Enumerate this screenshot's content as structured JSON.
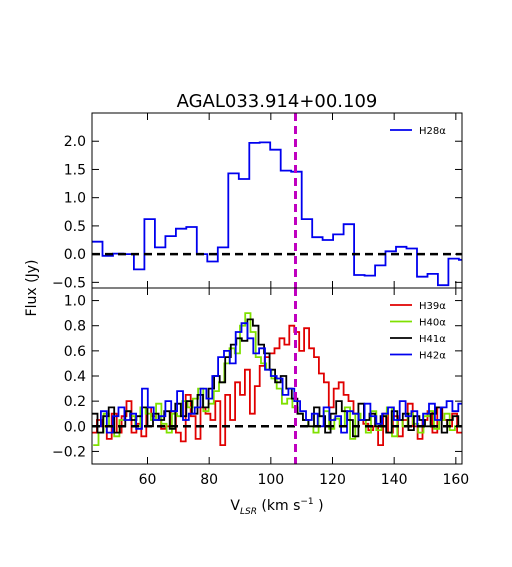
{
  "figure": {
    "title": "AGAL033.914+00.109",
    "xlabel": "V",
    "xlabel_sub": "LSR",
    "xlabel_unit_open": " (km s",
    "xlabel_unit_exp": "−1",
    "xlabel_unit_close": " )",
    "ylabel": "Flux (Jy)"
  },
  "chart_data": [
    {
      "type": "line",
      "step": true,
      "panel": "top",
      "xlim": [
        42,
        162
      ],
      "ylim": [
        -0.6,
        2.5
      ],
      "xticks": [
        60,
        80,
        100,
        120,
        140,
        160
      ],
      "yticks": [
        -0.5,
        0.0,
        0.5,
        1.0,
        1.5,
        2.0
      ],
      "ytick_labels": [
        "−0.5",
        "0.0",
        "0.5",
        "1.0",
        "1.5",
        "2.0"
      ],
      "legend": "top-right",
      "reference_lines": [
        {
          "orientation": "horizontal",
          "value": 0.0,
          "style": "dashed",
          "color": "#000000"
        },
        {
          "orientation": "vertical",
          "value": 108.0,
          "style": "dashed",
          "color": "#bf00bf"
        }
      ],
      "series": [
        {
          "name": "H28α",
          "color": "#0000ee",
          "x": [
            42,
            45.4,
            48.8,
            52.2,
            55.6,
            59,
            62.4,
            65.8,
            69.2,
            72.6,
            76,
            79.4,
            82.8,
            86.2,
            89.6,
            93,
            96.4,
            99.8,
            103.2,
            106.6,
            110,
            113.4,
            116.8,
            120.2,
            123.6,
            127,
            130.4,
            133.8,
            137.2,
            140.6,
            144,
            147.4,
            150.8,
            154.2,
            157.6,
            161
          ],
          "y": [
            0.22,
            -0.03,
            0.01,
            0.0,
            -0.27,
            0.62,
            0.12,
            0.32,
            0.45,
            0.48,
            0.0,
            -0.13,
            0.12,
            1.43,
            1.33,
            1.97,
            1.98,
            1.85,
            1.48,
            1.46,
            0.62,
            0.3,
            0.25,
            0.35,
            0.53,
            -0.37,
            -0.38,
            -0.2,
            0.05,
            0.13,
            0.1,
            -0.4,
            -0.35,
            -0.55,
            -0.08,
            -0.1
          ]
        }
      ]
    },
    {
      "type": "line",
      "step": true,
      "panel": "bottom",
      "xlim": [
        42,
        162
      ],
      "ylim": [
        -0.3,
        1.1
      ],
      "xticks": [
        60,
        80,
        100,
        120,
        140,
        160
      ],
      "yticks": [
        -0.2,
        0.0,
        0.2,
        0.4,
        0.6,
        0.8,
        1.0
      ],
      "ytick_labels": [
        "−0.2",
        "0.0",
        "0.2",
        "0.4",
        "0.6",
        "0.8",
        "1.0"
      ],
      "legend": "top-right",
      "reference_lines": [
        {
          "orientation": "horizontal",
          "value": 0.0,
          "style": "dashed",
          "color": "#000000"
        },
        {
          "orientation": "vertical",
          "value": 108.0,
          "style": "dashed",
          "color": "#bf00bf"
        }
      ],
      "series": [
        {
          "name": "H39α",
          "color": "#e00000",
          "x_start": 42,
          "x_step": 1.6,
          "y": [
            -0.05,
            0.05,
            0.0,
            -0.1,
            0.1,
            -0.05,
            0.08,
            0.2,
            -0.05,
            0.02,
            -0.08,
            0.15,
            0.08,
            0.05,
            -0.02,
            0.0,
            0.12,
            -0.05,
            -0.12,
            0.25,
            0.08,
            -0.1,
            0.15,
            0.1,
            0.05,
            0.2,
            -0.15,
            0.25,
            0.05,
            0.35,
            0.25,
            0.45,
            0.1,
            0.32,
            0.48,
            0.55,
            0.58,
            0.62,
            0.7,
            0.65,
            0.8,
            0.75,
            0.6,
            0.78,
            0.62,
            0.55,
            0.42,
            0.35,
            0.15,
            0.3,
            0.35,
            0.25,
            0.2,
            0.1,
            0.05,
            0.02,
            -0.03,
            0.0,
            -0.15,
            0.1,
            -0.05,
            0.08,
            -0.08,
            0.05,
            0.18,
            0.0,
            -0.1,
            0.05,
            0.12,
            -0.05,
            0.15,
            0.05,
            0.0,
            0.1,
            -0.05
          ]
        },
        {
          "name": "H40α",
          "color": "#7fe000",
          "x_start": 42.4,
          "x_step": 1.7,
          "y": [
            -0.15,
            -0.05,
            0.1,
            0.0,
            -0.08,
            0.05,
            0.12,
            0.08,
            0.0,
            0.15,
            0.1,
            0.05,
            0.18,
            0.02,
            -0.05,
            0.1,
            0.08,
            0.2,
            0.15,
            0.22,
            0.3,
            0.12,
            0.18,
            0.28,
            0.35,
            0.5,
            0.62,
            0.58,
            0.8,
            0.9,
            0.75,
            0.55,
            0.5,
            0.45,
            0.38,
            0.3,
            0.18,
            0.22,
            0.15,
            0.1,
            0.05,
            0.0,
            -0.05,
            0.08,
            0.12,
            -0.02,
            0.06,
            0.0,
            0.15,
            -0.1,
            0.1,
            0.05,
            -0.05,
            0.12,
            -0.03,
            0.08,
            0.15,
            -0.08,
            0.05,
            0.0,
            0.1,
            0.02,
            -0.05,
            0.08,
            0.12,
            -0.02,
            0.05,
            0.1,
            -0.03,
            0.0
          ]
        },
        {
          "name": "H41α",
          "color": "#000000",
          "x_start": 42,
          "x_step": 1.8,
          "y": [
            0.1,
            -0.05,
            0.08,
            0.15,
            -0.05,
            0.0,
            0.12,
            0.05,
            0.08,
            0.15,
            0.0,
            0.1,
            0.05,
            0.12,
            -0.02,
            0.18,
            0.08,
            0.2,
            0.1,
            0.25,
            0.15,
            0.3,
            0.4,
            0.35,
            0.55,
            0.65,
            0.7,
            0.68,
            0.85,
            0.8,
            0.65,
            0.58,
            0.45,
            0.35,
            0.4,
            0.3,
            0.22,
            0.1,
            0.05,
            0.0,
            0.15,
            0.08,
            -0.05,
            0.1,
            0.2,
            0.12,
            0.05,
            -0.08,
            0.18,
            0.05,
            0.1,
            0.0,
            0.08,
            -0.05,
            0.12,
            0.05,
            0.1,
            -0.03,
            0.08,
            0.05,
            0.0,
            0.1,
            0.15,
            -0.05,
            0.05,
            0.08,
            0.0
          ]
        },
        {
          "name": "H42α",
          "color": "#0000ee",
          "x_start": 43,
          "x_step": 1.9,
          "y": [
            0.0,
            0.12,
            -0.05,
            0.08,
            0.15,
            0.05,
            0.1,
            -0.02,
            0.3,
            0.15,
            0.05,
            0.08,
            0.2,
            0.12,
            0.28,
            0.05,
            0.1,
            0.15,
            0.3,
            0.22,
            0.4,
            0.55,
            0.6,
            0.5,
            0.75,
            0.82,
            0.7,
            0.58,
            0.62,
            0.45,
            0.4,
            0.38,
            0.25,
            0.3,
            0.2,
            0.12,
            0.05,
            0.1,
            0.0,
            0.15,
            0.05,
            0.08,
            -0.05,
            0.12,
            0.1,
            0.05,
            0.18,
            0.08,
            0.02,
            0.1,
            0.15,
            0.05,
            0.2,
            0.08,
            0.12,
            0.0,
            0.1,
            0.18,
            0.05,
            0.15,
            0.2,
            0.12,
            0.18,
            0.15
          ]
        }
      ]
    }
  ]
}
